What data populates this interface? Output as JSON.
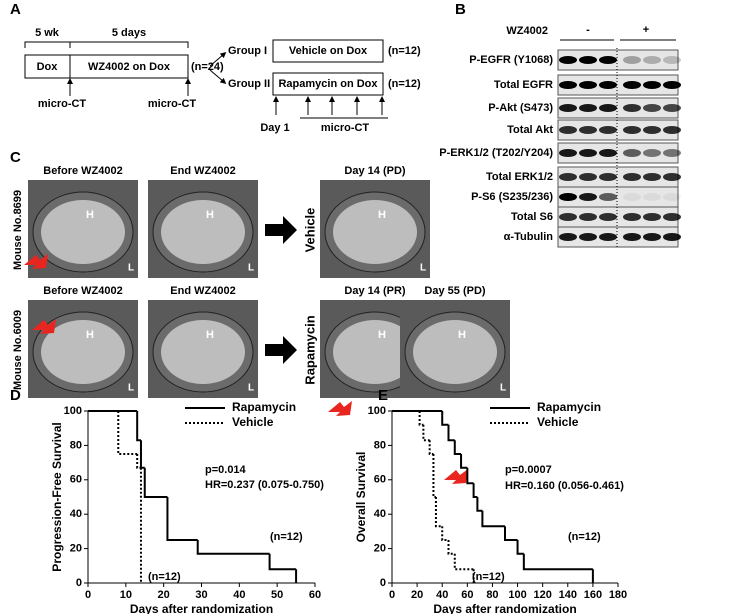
{
  "panel_a": {
    "label": "A",
    "durations": [
      "5 wk",
      "5 days"
    ],
    "boxes": [
      "Dox",
      "WZ4002 on Dox"
    ],
    "n": "(n=24)",
    "imaging": [
      "micro-CT",
      "micro-CT"
    ],
    "groups": [
      {
        "name": "Group I",
        "treatment": "Vehicle on Dox",
        "n": "(n=12)"
      },
      {
        "name": "Group II",
        "treatment": "Rapamycin on Dox",
        "n": "(n=12)"
      }
    ],
    "day": "Day 1",
    "imaging2": "micro-CT"
  },
  "panel_b": {
    "label": "B",
    "treatment": "WZ4002",
    "conditions": [
      "-",
      "+"
    ],
    "rows": [
      "P-EGFR (Y1068)",
      "Total EGFR",
      "P-Akt (S473)",
      "Total Akt",
      "P-ERK1/2 (T202/Y204)",
      "Total ERK1/2",
      "P-S6 (S235/236)",
      "Total S6",
      "α-Tubulin"
    ]
  },
  "panel_c": {
    "label": "C",
    "heart": "H",
    "side": "L",
    "mice": [
      {
        "id": "Mouse No.8699",
        "group": "Vehicle",
        "images": [
          "Before WZ4002",
          "End WZ4002",
          "Day 14 (PD)"
        ]
      },
      {
        "id": "Mouse No.6009",
        "group": "Rapamycin",
        "images": [
          "Before WZ4002",
          "End WZ4002",
          "Day 14 (PR)",
          "Day 55 (PD)"
        ]
      }
    ]
  },
  "chart_data": [
    {
      "type": "line",
      "panel": "D",
      "xlabel": "Days after randomization",
      "ylabel": "Progression-Free Survival",
      "xlim": [
        0,
        60
      ],
      "xticks": [
        0,
        10,
        20,
        30,
        40,
        50,
        60
      ],
      "ylim": [
        0,
        100
      ],
      "yticks": [
        0,
        20,
        40,
        60,
        80,
        100
      ],
      "annotations": [
        "p=0.014",
        "HR=0.237 (0.075-0.750)",
        "(n=12)",
        "(n=12)"
      ],
      "series": [
        {
          "name": "Rapamycin",
          "color": "#000000",
          "dash": "solid",
          "x": [
            0,
            13,
            14,
            15,
            21,
            29,
            48,
            55
          ],
          "values": [
            100,
            83,
            67,
            50,
            25,
            17,
            8,
            0
          ]
        },
        {
          "name": "Vehicle",
          "color": "#000000",
          "dash": "dotted",
          "x": [
            0,
            8,
            13,
            14
          ],
          "values": [
            100,
            75,
            67,
            0
          ]
        }
      ]
    },
    {
      "type": "line",
      "panel": "E",
      "xlabel": "Days after randomization",
      "ylabel": "Overall Survival",
      "xlim": [
        0,
        180
      ],
      "xticks": [
        0,
        20,
        40,
        60,
        80,
        100,
        120,
        140,
        160,
        180
      ],
      "ylim": [
        0,
        100
      ],
      "yticks": [
        0,
        20,
        40,
        60,
        80,
        100
      ],
      "annotations": [
        "p=0.0007",
        "HR=0.160 (0.056-0.461)",
        "(n=12)",
        "(n=12)"
      ],
      "series": [
        {
          "name": "Rapamycin",
          "color": "#000000",
          "dash": "solid",
          "x": [
            0,
            40,
            45,
            50,
            55,
            60,
            65,
            68,
            72,
            90,
            100,
            105,
            160
          ],
          "values": [
            100,
            92,
            83,
            75,
            67,
            58,
            50,
            42,
            33,
            25,
            17,
            8,
            0
          ]
        },
        {
          "name": "Vehicle",
          "color": "#000000",
          "dash": "dotted",
          "x": [
            0,
            22,
            25,
            30,
            33,
            35,
            40,
            45,
            50,
            60,
            65
          ],
          "values": [
            100,
            92,
            83,
            75,
            50,
            33,
            25,
            17,
            8,
            8,
            0
          ]
        }
      ]
    }
  ]
}
